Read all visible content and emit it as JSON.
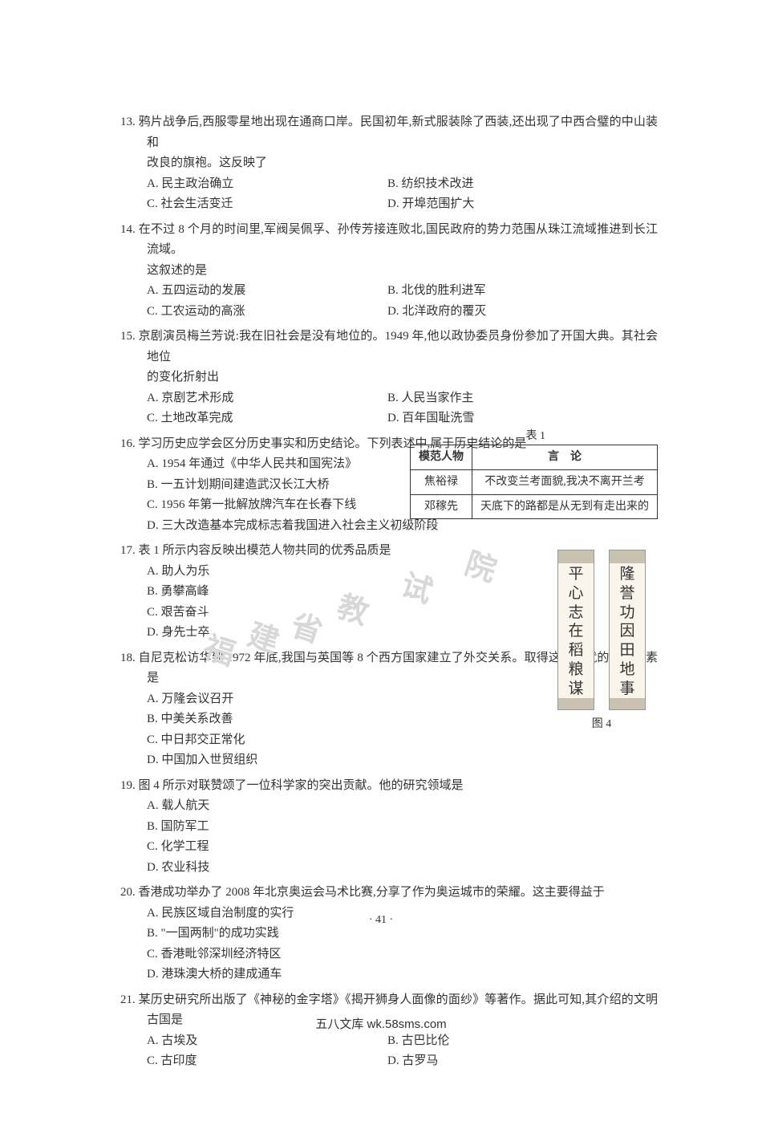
{
  "colors": {
    "text": "#333333",
    "background": "#ffffff",
    "watermark": "#d8d8d8",
    "table_border": "#333333",
    "couplet_bg": "#f9f5ed",
    "couplet_trim": "#c9c2b0"
  },
  "typography": {
    "body_font": "SimSun",
    "body_size_pt": 11,
    "line_height": 1.7
  },
  "questions": [
    {
      "num": "13",
      "stem": "13. 鸦片战争后,西服零星地出现在通商口岸。民国初年,新式服装除了西装,还出现了中西合璧的中山装和",
      "stem_continue": "改良的旗袍。这反映了",
      "options": [
        {
          "label": "A. 民主政治确立",
          "pair": "B. 纺织技术改进"
        },
        {
          "label": "C. 社会生活变迁",
          "pair": "D. 开埠范围扩大"
        }
      ]
    },
    {
      "num": "14",
      "stem": "14. 在不过 8 个月的时间里,军阀吴佩孚、孙传芳接连败北,国民政府的势力范围从珠江流域推进到长江流域。",
      "stem_continue": "这叙述的是",
      "options": [
        {
          "label": "A. 五四运动的发展",
          "pair": "B. 北伐的胜利进军"
        },
        {
          "label": "C. 工农运动的高涨",
          "pair": "D. 北洋政府的覆灭"
        }
      ]
    },
    {
      "num": "15",
      "stem": "15. 京剧演员梅兰芳说:我在旧社会是没有地位的。1949 年,他以政协委员身份参加了开国大典。其社会地位",
      "stem_continue": "的变化折射出",
      "options": [
        {
          "label": "A. 京剧艺术形成",
          "pair": "B. 人民当家作主"
        },
        {
          "label": "C. 土地改革完成",
          "pair": "D. 百年国耻洗雪"
        }
      ]
    },
    {
      "num": "16",
      "stem": "16. 学习历史应学会区分历史事实和历史结论。下列表述中,属于历史结论的是",
      "options_single": [
        "A. 1954 年通过《中华人民共和国宪法》",
        "B. 一五计划期间建造武汉长江大桥",
        "C. 1956 年第一批解放牌汽车在长春下线",
        "D. 三大改造基本完成标志着我国进入社会主义初级阶段"
      ]
    },
    {
      "num": "17",
      "stem": "17. 表 1 所示内容反映出模范人物共同的优秀品质是",
      "options_single": [
        "A. 助人为乐",
        "B. 勇攀高峰",
        "C. 艰苦奋斗",
        "D. 身先士卒"
      ]
    },
    {
      "num": "18",
      "stem": "18. 自尼克松访华到 1972 年底,我国与英国等 8 个西方国家建立了外交关系。取得这一成就的关键因素是",
      "options_single": [
        "A. 万隆会议召开",
        "B. 中美关系改善",
        "C. 中日邦交正常化",
        "D. 中国加入世贸组织"
      ]
    },
    {
      "num": "19",
      "stem": "19. 图 4 所示对联赞颂了一位科学家的突出贡献。他的研究领域是",
      "options_single": [
        "A. 载人航天",
        "B. 国防军工",
        "C. 化学工程",
        "D. 农业科技"
      ]
    },
    {
      "num": "20",
      "stem": "20. 香港成功举办了 2008 年北京奥运会马术比赛,分享了作为奥运城市的荣耀。这主要得益于",
      "options_single": [
        "A. 民族区域自治制度的实行",
        "B. \"一国两制\"的成功实践",
        "C. 香港毗邻深圳经济特区",
        "D. 港珠澳大桥的建成通车"
      ]
    },
    {
      "num": "21",
      "stem": "21. 某历史研究所出版了《神秘的金字塔》《揭开狮身人面像的面纱》等著作。据此可知,其介绍的文明古国是",
      "options": [
        {
          "label": "A. 古埃及",
          "pair": "B. 古巴比伦"
        },
        {
          "label": "C. 古印度",
          "pair": "D. 古罗马"
        }
      ]
    }
  ],
  "table1": {
    "label": "表 1",
    "headers": [
      "模范人物",
      "言　论"
    ],
    "rows": [
      [
        "焦裕禄",
        "不改变兰考面貌,我决不离开兰考"
      ],
      [
        "邓稼先",
        "天底下的路都是从无到有走出来的"
      ]
    ],
    "border_color": "#333333",
    "font_size_pt": 10
  },
  "figure4": {
    "label": "图 4",
    "couplets": {
      "right": "隆誉功因田地事",
      "left": "平心志在稻粮谋"
    },
    "bg_color": "#f9f5ed",
    "trim_color": "#c9c2b0"
  },
  "watermark": {
    "text": "福建省教试院",
    "color": "#d8d8d8",
    "font_size_pt": 30,
    "rotation_deg": 18
  },
  "page_number": "· 41 ·",
  "footer": "五八文库 wk.58sms.com"
}
